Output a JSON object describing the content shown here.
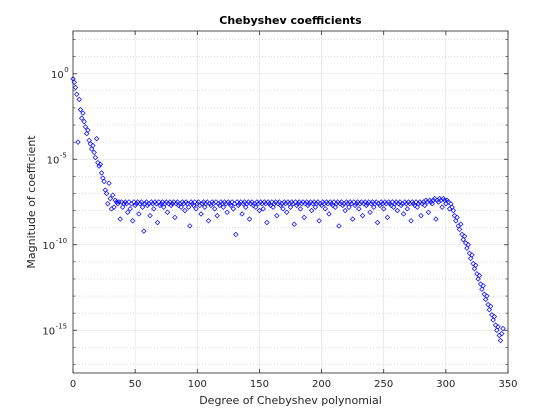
{
  "chart_data": {
    "type": "scatter",
    "title": "Chebyshev coefficients",
    "xlabel": "Degree of Chebyshev polynomial",
    "ylabel": "Magnitude of coefficient",
    "xlim": [
      0,
      350
    ],
    "ylim_log10": [
      -17.5,
      2.5
    ],
    "yscale": "log",
    "x_ticks": [
      "0",
      "50",
      "100",
      "150",
      "200",
      "250",
      "300",
      "350"
    ],
    "y_ticks": [
      {
        "base": "10",
        "exp": "0",
        "log10": 0
      },
      {
        "base": "10",
        "exp": "-5",
        "log10": -5
      },
      {
        "base": "10",
        "exp": "-10",
        "log10": -10
      },
      {
        "base": "10",
        "exp": "-15",
        "log10": -15
      }
    ],
    "grid": true,
    "marker": "diamond",
    "marker_color": "#0000ff",
    "series": [
      {
        "x_start": 0,
        "x_step": 1,
        "description_note": "",
        "log10_magnitude": [
          -0.3,
          -0.5,
          -0.8,
          -1.2,
          -4.0,
          -1.5,
          -2.1,
          -2.6,
          -2.3,
          -2.8,
          -3.1,
          -3.5,
          -3.3,
          -3.9,
          -4.1,
          -4.4,
          -4.2,
          -4.6,
          -4.9,
          -3.8,
          -5.2,
          -5.4,
          -5.3,
          -5.8,
          -6.1,
          -6.3,
          -6.8,
          -7.0,
          -7.6,
          -6.4,
          -7.3,
          -7.9,
          -7.1,
          -7.8,
          -7.4,
          -7.5,
          -7.6,
          -7.5,
          -8.5,
          -7.5,
          -7.8,
          -7.6,
          -7.5,
          -7.6,
          -8.1,
          -7.5,
          -7.9,
          -7.6,
          -8.6,
          -7.5,
          -7.7,
          -7.6,
          -7.5,
          -8.2,
          -7.6,
          -7.5,
          -7.8,
          -9.2,
          -7.6,
          -7.5,
          -7.7,
          -7.6,
          -8.3,
          -7.5,
          -7.6,
          -7.9,
          -7.5,
          -7.6,
          -8.7,
          -7.5,
          -7.7,
          -7.6,
          -7.5,
          -7.8,
          -7.6,
          -7.5,
          -8.1,
          -7.6,
          -7.5,
          -7.7,
          -7.6,
          -7.5,
          -8.4,
          -7.6,
          -7.5,
          -7.7,
          -7.6,
          -7.8,
          -7.5,
          -7.6,
          -8.0,
          -7.5,
          -7.6,
          -7.8,
          -8.9,
          -7.5,
          -7.6,
          -7.7,
          -7.5,
          -7.9,
          -7.6,
          -7.5,
          -7.7,
          -8.2,
          -7.6,
          -7.5,
          -7.8,
          -7.6,
          -7.5,
          -8.6,
          -7.6,
          -7.7,
          -7.5,
          -7.6,
          -7.9,
          -7.5,
          -8.3,
          -7.6,
          -7.7,
          -7.5,
          -7.6,
          -7.8,
          -7.5,
          -7.6,
          -8.1,
          -7.5,
          -7.6,
          -7.7,
          -7.5,
          -7.9,
          -7.6,
          -9.4,
          -7.5,
          -7.7,
          -7.6,
          -7.5,
          -8.2,
          -7.6,
          -7.5,
          -7.8,
          -7.6,
          -7.5,
          -8.5,
          -7.6,
          -7.5,
          -7.7,
          -7.6,
          -7.8,
          -7.5,
          -7.6,
          -8.0,
          -7.5,
          -7.6,
          -7.9,
          -7.5,
          -7.6,
          -8.7,
          -7.5,
          -7.6,
          -7.7,
          -7.5,
          -7.8,
          -7.6,
          -7.5,
          -8.3,
          -7.6,
          -7.5,
          -7.7,
          -7.6,
          -7.9,
          -7.5,
          -7.6,
          -8.1,
          -7.5,
          -7.6,
          -7.8,
          -7.5,
          -7.6,
          -8.8,
          -7.5,
          -7.7,
          -7.6,
          -7.5,
          -7.9,
          -7.6,
          -7.5,
          -8.4,
          -7.6,
          -7.5,
          -7.7,
          -7.6,
          -7.5,
          -8.0,
          -7.6,
          -7.5,
          -7.8,
          -7.6,
          -7.5,
          -8.6,
          -7.6,
          -7.7,
          -7.5,
          -7.6,
          -7.9,
          -7.5,
          -7.6,
          -8.2,
          -7.5,
          -7.6,
          -7.7,
          -7.5,
          -7.8,
          -7.6,
          -7.5,
          -8.9,
          -7.6,
          -7.5,
          -7.7,
          -7.6,
          -8.0,
          -7.5,
          -7.6,
          -7.8,
          -7.5,
          -7.6,
          -8.5,
          -7.5,
          -7.7,
          -7.6,
          -7.5,
          -7.9,
          -7.6,
          -7.5,
          -8.3,
          -7.6,
          -7.5,
          -7.7,
          -7.6,
          -7.5,
          -8.1,
          -7.6,
          -7.5,
          -7.8,
          -7.6,
          -7.5,
          -8.7,
          -7.6,
          -7.7,
          -7.5,
          -7.6,
          -7.9,
          -7.5,
          -7.6,
          -8.4,
          -7.5,
          -7.6,
          -7.7,
          -7.5,
          -7.8,
          -7.6,
          -7.5,
          -8.0,
          -7.6,
          -7.5,
          -7.7,
          -7.6,
          -8.2,
          -7.5,
          -7.6,
          -7.9,
          -7.5,
          -7.6,
          -8.6,
          -7.5,
          -7.6,
          -7.7,
          -7.5,
          -7.8,
          -7.6,
          -7.5,
          -8.3,
          -7.6,
          -7.5,
          -7.7,
          -7.4,
          -7.5,
          -8.1,
          -7.4,
          -7.5,
          -7.6,
          -7.4,
          -7.3,
          -8.5,
          -7.4,
          -7.5,
          -7.3,
          -7.4,
          -7.8,
          -7.3,
          -7.4,
          -7.6,
          -7.4,
          -7.5,
          -7.9,
          -7.6,
          -7.8,
          -8.0,
          -8.3,
          -8.6,
          -8.4,
          -8.9,
          -9.1,
          -8.8,
          -9.4,
          -9.7,
          -9.5,
          -9.9,
          -10.2,
          -10.0,
          -10.5,
          -10.8,
          -10.6,
          -11.1,
          -11.4,
          -11.2,
          -11.7,
          -12.0,
          -11.8,
          -12.3,
          -12.6,
          -12.4,
          -12.9,
          -13.2,
          -13.0,
          -13.5,
          -13.8,
          -13.6,
          -14.1,
          -14.4,
          -14.2,
          -14.7,
          -15.0,
          -14.8,
          -15.3,
          -15.6,
          -15.2,
          -14.9
        ]
      }
    ]
  }
}
